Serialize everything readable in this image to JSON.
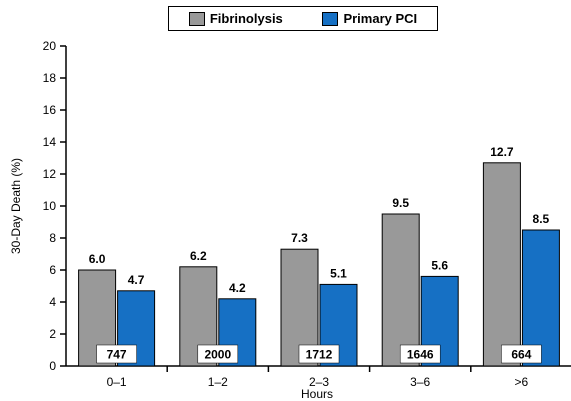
{
  "chart_data": {
    "type": "bar",
    "categories": [
      "0–1",
      "1–2",
      "2–3",
      "3–6",
      ">6"
    ],
    "series": [
      {
        "name": "Fibrinolysis",
        "values": [
          6.0,
          6.2,
          7.3,
          9.5,
          12.7
        ],
        "color": "#999999"
      },
      {
        "name": "Primary PCI",
        "values": [
          4.7,
          4.2,
          5.1,
          5.6,
          8.5
        ],
        "color": "#1670C4"
      }
    ],
    "data_labels": [
      [
        "6.0",
        "6.2",
        "7.3",
        "9.5",
        "12.7"
      ],
      [
        "4.7",
        "4.2",
        "5.1",
        "5.6",
        "8.5"
      ]
    ],
    "counts": [
      "747",
      "2000",
      "1712",
      "1646",
      "664"
    ],
    "xlabel": "Hours",
    "ylabel": "30-Day Death (%)",
    "ylim": [
      0,
      20
    ],
    "yticks": [
      "0",
      "2",
      "4",
      "6",
      "8",
      "10",
      "12",
      "14",
      "16",
      "18",
      "20"
    ],
    "grid": false,
    "legend_position": "top-center"
  }
}
